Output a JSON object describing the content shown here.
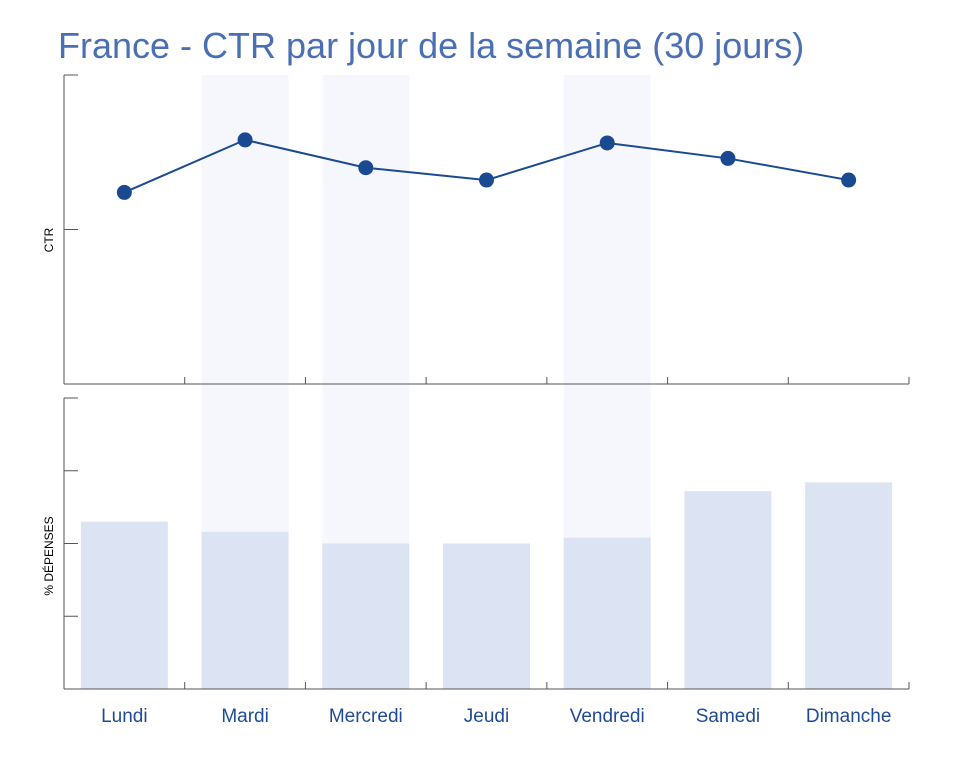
{
  "chart_data": {
    "title": "France - CTR par jour de la semaine (30 jours)",
    "categories": [
      "Lundi",
      "Mardi",
      "Mercredi",
      "Jeudi",
      "Vendredi",
      "Samedi",
      "Dimanche"
    ],
    "highlighted_categories": [
      "Mardi",
      "Mercredi",
      "Vendredi"
    ],
    "line_panel": {
      "type": "line",
      "ylabel": "CTR",
      "ylim": [
        0,
        10
      ],
      "y_ticks": [
        0,
        5
      ],
      "series": [
        {
          "values": [
            6.2,
            7.9,
            7.0,
            6.6,
            7.8,
            7.3,
            6.6
          ]
        }
      ]
    },
    "bar_panel": {
      "type": "bar",
      "ylabel": "% DÉPENSES",
      "ylim": [
        0,
        20
      ],
      "y_ticks": [
        0,
        5,
        10,
        15,
        20
      ],
      "series": [
        {
          "values": [
            11.5,
            10.8,
            10.0,
            10.0,
            10.4,
            13.6,
            14.2
          ]
        }
      ]
    },
    "grid": false
  },
  "colors": {
    "title": "#4a6fb5",
    "line": "#1a4a8f",
    "marker": "#194a91",
    "bar": "#dce3f2",
    "highlight_band": "#f5f7fc",
    "tick_label": "#1f4b96"
  }
}
